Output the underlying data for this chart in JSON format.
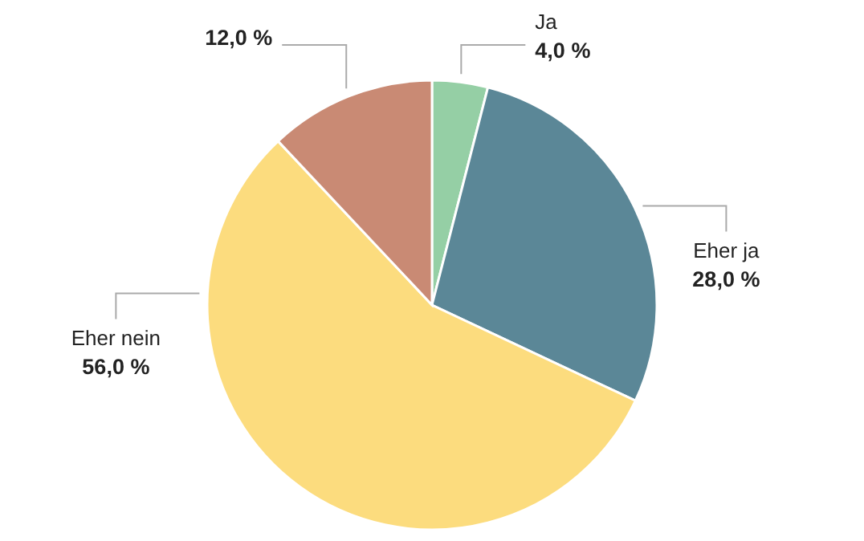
{
  "chart_data": {
    "type": "pie",
    "categories": [
      "Ja",
      "Eher ja",
      "Eher nein",
      null
    ],
    "values": [
      4,
      28,
      56,
      12
    ],
    "colors": [
      "#95cfa5",
      "#5b8797",
      "#fcdc7e",
      "#c98a74"
    ],
    "value_labels": [
      "4,0 %",
      "28,0 %",
      "56,0 %",
      "12,0 %"
    ]
  }
}
